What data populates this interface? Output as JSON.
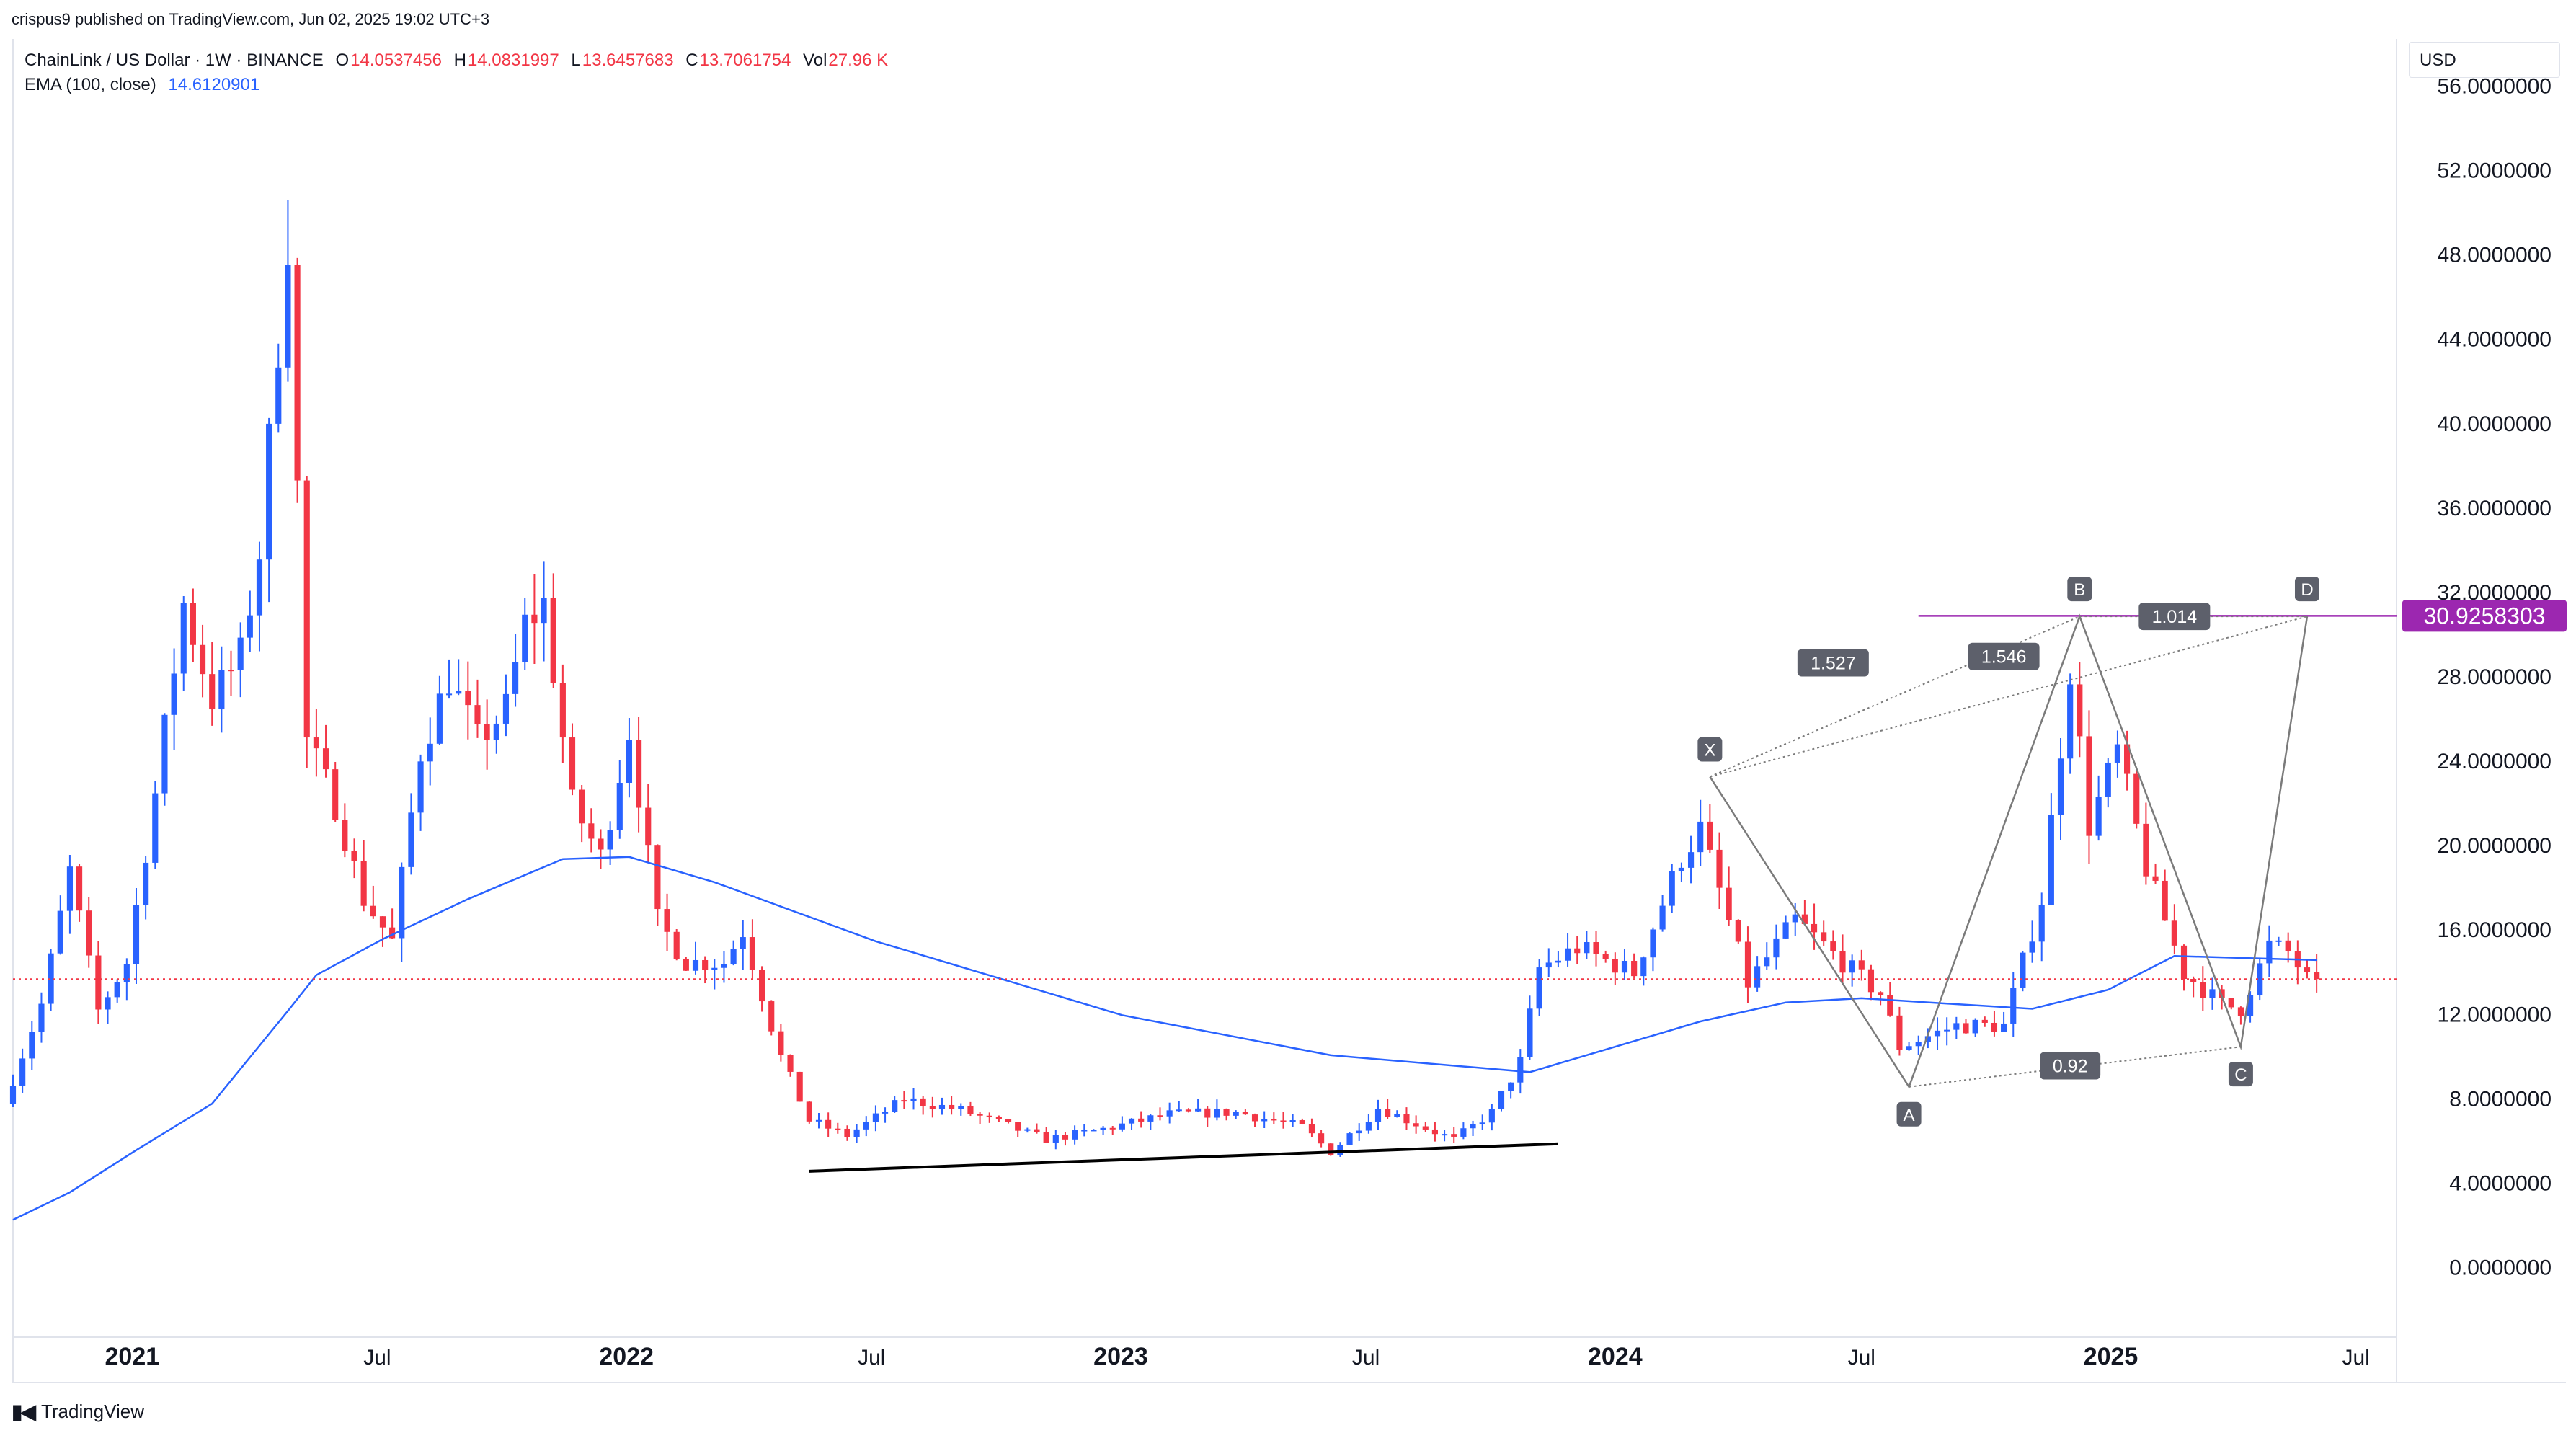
{
  "publisher": "crispus9 published on TradingView.com, Jun 02, 2025 19:02 UTC+3",
  "symbol": "ChainLink / US Dollar · 1W · BINANCE",
  "ohlc": {
    "o_label": "O",
    "o": "14.0537456",
    "h_label": "H",
    "h": "14.0831997",
    "l_label": "L",
    "l": "13.6457683",
    "c_label": "C",
    "c": "13.7061754",
    "vol_label": "Vol",
    "vol": "27.96 K"
  },
  "ema_label": "EMA (100, close)",
  "ema_value": "14.6120901",
  "currency": "USD",
  "footer": {
    "brand": "TradingView",
    "logo_icon": "tradingview-logo-icon"
  },
  "colors": {
    "up": "#2962ff",
    "down": "#f23645",
    "ema": "#2962ff",
    "harmonic": "#7b7b7b",
    "target": "#9c27b0",
    "current": "#f23645",
    "support": "#000000"
  },
  "chart_data": {
    "type": "candlestick",
    "ylim": [
      -2,
      58
    ],
    "y_ticks": [
      "56.0000000",
      "52.0000000",
      "48.0000000",
      "44.0000000",
      "40.0000000",
      "36.0000000",
      "32.0000000",
      "28.0000000",
      "24.0000000",
      "20.0000000",
      "16.0000000",
      "12.0000000",
      "8.0000000",
      "4.0000000",
      "0.0000000"
    ],
    "x_tick_labels": [
      {
        "date": "2021-01-01",
        "label": "2021",
        "bold": true
      },
      {
        "date": "2021-07-01",
        "label": "Jul",
        "bold": false
      },
      {
        "date": "2022-01-01",
        "label": "2022",
        "bold": true
      },
      {
        "date": "2022-07-01",
        "label": "Jul",
        "bold": false
      },
      {
        "date": "2023-01-01",
        "label": "2023",
        "bold": true
      },
      {
        "date": "2023-07-01",
        "label": "Jul",
        "bold": false
      },
      {
        "date": "2024-01-01",
        "label": "2024",
        "bold": true
      },
      {
        "date": "2024-07-01",
        "label": "Jul",
        "bold": false
      },
      {
        "date": "2025-01-01",
        "label": "2025",
        "bold": true
      },
      {
        "date": "2025-07-01",
        "label": "Jul",
        "bold": false
      }
    ],
    "date_range": [
      "2020-10-05",
      "2025-07-31"
    ],
    "price_path": [
      [
        "2020-10-05",
        7.8
      ],
      [
        "2020-11-02",
        12.5
      ],
      [
        "2020-11-23",
        18.8
      ],
      [
        "2020-12-14",
        12.2
      ],
      [
        "2021-01-04",
        14.5
      ],
      [
        "2021-01-25",
        22.5
      ],
      [
        "2021-02-15",
        31.5
      ],
      [
        "2021-03-08",
        27.0
      ],
      [
        "2021-03-29",
        29.0
      ],
      [
        "2021-04-12",
        34.0
      ],
      [
        "2021-05-03",
        49.0
      ],
      [
        "2021-05-17",
        25.0
      ],
      [
        "2021-06-07",
        22.0
      ],
      [
        "2021-06-28",
        17.5
      ],
      [
        "2021-07-19",
        15.5
      ],
      [
        "2021-08-09",
        24.5
      ],
      [
        "2021-08-30",
        28.0
      ],
      [
        "2021-09-20",
        25.0
      ],
      [
        "2021-10-11",
        26.5
      ],
      [
        "2021-10-25",
        30.5
      ],
      [
        "2021-11-08",
        31.5
      ],
      [
        "2021-11-29",
        22.0
      ],
      [
        "2021-12-20",
        19.5
      ],
      [
        "2022-01-10",
        25.5
      ],
      [
        "2022-01-31",
        16.5
      ],
      [
        "2022-02-21",
        14.5
      ],
      [
        "2022-03-21",
        14.5
      ],
      [
        "2022-04-04",
        16.0
      ],
      [
        "2022-05-02",
        10.0
      ],
      [
        "2022-05-23",
        7.0
      ],
      [
        "2022-06-20",
        6.3
      ],
      [
        "2022-08-01",
        8.0
      ],
      [
        "2022-09-12",
        7.5
      ],
      [
        "2022-11-14",
        6.1
      ],
      [
        "2022-12-26",
        6.6
      ],
      [
        "2023-02-13",
        7.3
      ],
      [
        "2023-04-03",
        7.4
      ],
      [
        "2023-05-22",
        6.7
      ],
      [
        "2023-06-12",
        5.5
      ],
      [
        "2023-07-17",
        7.6
      ],
      [
        "2023-09-11",
        6.1
      ],
      [
        "2023-10-09",
        7.4
      ],
      [
        "2023-10-30",
        9.8
      ],
      [
        "2023-11-13",
        14.2
      ],
      [
        "2023-12-11",
        15.2
      ],
      [
        "2024-01-22",
        14.0
      ],
      [
        "2024-02-26",
        19.5
      ],
      [
        "2024-03-11",
        20.8
      ],
      [
        "2024-04-15",
        13.5
      ],
      [
        "2024-05-20",
        16.5
      ],
      [
        "2024-06-24",
        14.5
      ],
      [
        "2024-07-22",
        13.0
      ],
      [
        "2024-08-05",
        10.5
      ],
      [
        "2024-09-16",
        11.5
      ],
      [
        "2024-10-21",
        11.5
      ],
      [
        "2024-11-18",
        17.5
      ],
      [
        "2024-12-09",
        28.5
      ],
      [
        "2024-12-23",
        21.0
      ],
      [
        "2025-01-13",
        24.5
      ],
      [
        "2025-02-03",
        19.0
      ],
      [
        "2025-03-03",
        14.0
      ],
      [
        "2025-03-31",
        12.5
      ],
      [
        "2025-04-14",
        12.3
      ],
      [
        "2025-05-05",
        15.3
      ],
      [
        "2025-05-19",
        15.0
      ],
      [
        "2025-06-02",
        13.71
      ]
    ],
    "ema_path": [
      [
        "2020-10-05",
        2.3
      ],
      [
        "2020-11-16",
        3.6
      ],
      [
        "2021-01-04",
        5.6
      ],
      [
        "2021-03-01",
        7.8
      ],
      [
        "2021-04-26",
        12.2
      ],
      [
        "2021-05-17",
        13.9
      ],
      [
        "2021-07-05",
        15.6
      ],
      [
        "2021-09-06",
        17.5
      ],
      [
        "2021-11-15",
        19.4
      ],
      [
        "2022-01-03",
        19.5
      ],
      [
        "2022-03-07",
        18.3
      ],
      [
        "2022-07-04",
        15.5
      ],
      [
        "2023-01-02",
        12.0
      ],
      [
        "2023-06-05",
        10.1
      ],
      [
        "2023-10-30",
        9.3
      ],
      [
        "2024-01-01",
        10.5
      ],
      [
        "2024-03-04",
        11.7
      ],
      [
        "2024-05-06",
        12.6
      ],
      [
        "2024-07-01",
        12.8
      ],
      [
        "2024-11-04",
        12.3
      ],
      [
        "2024-12-30",
        13.2
      ],
      [
        "2025-02-17",
        14.8
      ],
      [
        "2025-06-02",
        14.61
      ]
    ],
    "current_price": 13.71,
    "support_line": {
      "from": [
        "2022-05-16",
        4.6
      ],
      "to": [
        "2023-11-20",
        5.9
      ]
    },
    "harmonic_pattern": {
      "points": [
        {
          "name": "X",
          "date": "2024-03-11",
          "price": 23.3
        },
        {
          "name": "A",
          "date": "2024-08-05",
          "price": 8.6
        },
        {
          "name": "B",
          "date": "2024-12-09",
          "price": 30.9
        },
        {
          "name": "C",
          "date": "2025-04-07",
          "price": 10.5
        },
        {
          "name": "D",
          "date": "2025-05-26",
          "price": 30.9
        }
      ],
      "ratios": [
        {
          "label": "1.527",
          "date": "2024-06-10",
          "price": 28.7
        },
        {
          "label": "1.546",
          "date": "2024-10-14",
          "price": 29.0
        },
        {
          "label": "1.014",
          "date": "2025-02-17",
          "price": 30.9
        },
        {
          "label": "0.92",
          "date": "2024-12-02",
          "price": 9.6
        }
      ]
    },
    "target_line": {
      "start_date": "2024-08-12",
      "price": 30.9258303,
      "label": "30.9258303"
    }
  }
}
